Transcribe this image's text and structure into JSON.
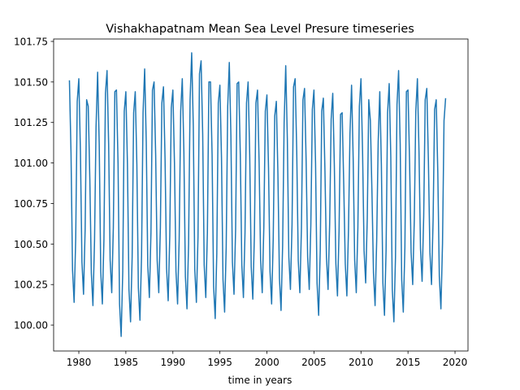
{
  "chart_data": {
    "type": "line",
    "title": "Vishakhapatnam Mean Sea Level Presure timeseries",
    "xlabel": "time in years",
    "xlim": [
      1977.32,
      2021.38
    ],
    "ylim": [
      99.84,
      101.765
    ],
    "xticks": [
      1980,
      1985,
      1990,
      1995,
      2000,
      2005,
      2010,
      2015,
      2020
    ],
    "yticks": [
      {
        "value": 100,
        "label": "100.00"
      },
      100.25,
      {
        "value": 100.5,
        "label": "100.50"
      },
      100.75,
      {
        "value": 101,
        "label": "101.00"
      },
      101.25,
      {
        "value": 101.5,
        "label": "101.50"
      },
      101.75
    ],
    "grid": false,
    "series": [
      {
        "color": "#1f77b4",
        "x": [
          1979,
          1979.17,
          1979.33,
          1979.5,
          1979.67,
          1979.83,
          1980,
          1980.17,
          1980.33,
          1980.5,
          1980.67,
          1980.83,
          1981,
          1981.17,
          1981.33,
          1981.5,
          1981.67,
          1981.83,
          1982,
          1982.17,
          1982.33,
          1982.5,
          1982.67,
          1982.83,
          1983,
          1983.17,
          1983.33,
          1983.5,
          1983.67,
          1983.83,
          1984,
          1984.17,
          1984.33,
          1984.5,
          1984.67,
          1984.83,
          1985,
          1985.17,
          1985.33,
          1985.5,
          1985.67,
          1985.83,
          1986,
          1986.17,
          1986.33,
          1986.5,
          1986.67,
          1986.83,
          1987,
          1987.17,
          1987.33,
          1987.5,
          1987.67,
          1987.83,
          1988,
          1988.17,
          1988.33,
          1988.5,
          1988.67,
          1988.83,
          1989,
          1989.17,
          1989.33,
          1989.5,
          1989.67,
          1989.83,
          1990,
          1990.17,
          1990.33,
          1990.5,
          1990.67,
          1990.83,
          1991,
          1991.17,
          1991.33,
          1991.5,
          1991.67,
          1991.83,
          1992,
          1992.17,
          1992.33,
          1992.5,
          1992.67,
          1992.83,
          1993,
          1993.17,
          1993.33,
          1993.5,
          1993.67,
          1993.83,
          1994,
          1994.17,
          1994.33,
          1994.5,
          1994.67,
          1994.83,
          1995,
          1995.17,
          1995.33,
          1995.5,
          1995.67,
          1995.83,
          1996,
          1996.17,
          1996.33,
          1996.5,
          1996.67,
          1996.83,
          1997,
          1997.17,
          1997.33,
          1997.5,
          1997.67,
          1997.83,
          1998,
          1998.17,
          1998.33,
          1998.5,
          1998.67,
          1998.83,
          1999,
          1999.17,
          1999.33,
          1999.5,
          1999.67,
          1999.83,
          2000,
          2000.17,
          2000.33,
          2000.5,
          2000.67,
          2000.83,
          2001,
          2001.17,
          2001.33,
          2001.5,
          2001.67,
          2001.83,
          2002,
          2002.17,
          2002.33,
          2002.5,
          2002.67,
          2002.83,
          2003,
          2003.17,
          2003.33,
          2003.5,
          2003.67,
          2003.83,
          2004,
          2004.17,
          2004.33,
          2004.5,
          2004.67,
          2004.83,
          2005,
          2005.17,
          2005.33,
          2005.5,
          2005.67,
          2005.83,
          2006,
          2006.17,
          2006.33,
          2006.5,
          2006.67,
          2006.83,
          2007,
          2007.17,
          2007.33,
          2007.5,
          2007.67,
          2007.83,
          2008,
          2008.17,
          2008.33,
          2008.5,
          2008.67,
          2008.83,
          2009,
          2009.17,
          2009.33,
          2009.5,
          2009.67,
          2009.83,
          2010,
          2010.17,
          2010.33,
          2010.5,
          2010.67,
          2010.83,
          2011,
          2011.17,
          2011.33,
          2011.5,
          2011.67,
          2011.83,
          2012,
          2012.17,
          2012.33,
          2012.5,
          2012.67,
          2012.83,
          2013,
          2013.17,
          2013.33,
          2013.5,
          2013.67,
          2013.83,
          2014,
          2014.17,
          2014.33,
          2014.5,
          2014.67,
          2014.83,
          2015,
          2015.17,
          2015.33,
          2015.5,
          2015.67,
          2015.83,
          2016,
          2016.17,
          2016.33,
          2016.5,
          2016.67,
          2016.83,
          2017,
          2017.17,
          2017.33,
          2017.5,
          2017.67,
          2017.83,
          2018,
          2018.17,
          2018.33,
          2018.5,
          2018.67,
          2018.83,
          2019
        ],
        "values": [
          101.51,
          101.06,
          100.34,
          100.14,
          100.54,
          101.38,
          101.52,
          101.07,
          100.39,
          100.19,
          100.59,
          101.39,
          101.35,
          100.9,
          100.32,
          100.12,
          100.52,
          101.22,
          101.56,
          101.11,
          100.33,
          100.13,
          100.53,
          101.43,
          101.57,
          101.12,
          100.4,
          100.2,
          100.6,
          101.44,
          101.45,
          101.0,
          100.13,
          99.93,
          100.33,
          101.32,
          101.44,
          100.99,
          100.22,
          100.02,
          100.42,
          101.31,
          101.44,
          100.99,
          100.23,
          100.03,
          100.43,
          101.31,
          101.58,
          101.13,
          100.37,
          100.17,
          100.57,
          101.45,
          101.5,
          101.05,
          100.4,
          100.2,
          100.6,
          101.37,
          101.47,
          101.02,
          100.35,
          100.15,
          100.55,
          101.34,
          101.45,
          101.0,
          100.33,
          100.13,
          100.53,
          101.32,
          101.52,
          101.07,
          100.3,
          100.1,
          100.5,
          101.39,
          101.68,
          101.23,
          100.34,
          100.14,
          100.54,
          101.55,
          101.63,
          101.18,
          100.37,
          100.17,
          100.57,
          101.5,
          101.5,
          101.05,
          100.24,
          100.04,
          100.44,
          101.37,
          101.48,
          101.03,
          100.28,
          100.08,
          100.48,
          101.35,
          101.62,
          101.17,
          100.39,
          100.19,
          100.59,
          101.49,
          101.5,
          101.05,
          100.37,
          100.17,
          100.57,
          101.37,
          101.5,
          101.05,
          100.36,
          100.16,
          100.56,
          101.37,
          101.45,
          101.0,
          100.4,
          100.2,
          100.6,
          101.32,
          101.42,
          100.97,
          100.33,
          100.13,
          100.53,
          101.29,
          101.38,
          100.93,
          100.29,
          100.09,
          100.49,
          101.25,
          101.6,
          101.15,
          100.42,
          100.22,
          100.62,
          101.47,
          101.52,
          101.07,
          100.4,
          100.2,
          100.6,
          101.39,
          101.46,
          101.01,
          100.42,
          100.22,
          100.62,
          101.33,
          101.45,
          101.0,
          100.26,
          100.06,
          100.46,
          101.32,
          101.4,
          100.95,
          100.42,
          100.22,
          100.62,
          101.27,
          101.43,
          100.98,
          100.38,
          100.18,
          100.58,
          101.3,
          101.31,
          100.86,
          100.38,
          100.18,
          100.58,
          101.18,
          101.48,
          101.03,
          100.4,
          100.2,
          100.6,
          101.35,
          101.52,
          101.07,
          100.46,
          100.26,
          100.66,
          101.39,
          101.26,
          100.81,
          100.32,
          100.12,
          100.52,
          101.13,
          101.44,
          100.99,
          100.26,
          100.06,
          100.46,
          101.31,
          101.49,
          101.04,
          100.22,
          100.02,
          100.42,
          101.36,
          101.57,
          101.12,
          100.28,
          100.08,
          100.48,
          101.44,
          101.45,
          101.0,
          100.45,
          100.25,
          100.65,
          101.32,
          101.52,
          101.07,
          100.47,
          100.27,
          100.67,
          101.39,
          101.46,
          101.01,
          100.45,
          100.25,
          100.65,
          101.33,
          101.39,
          100.94,
          100.3,
          100.1,
          100.5,
          101.26,
          101.4
        ]
      }
    ]
  }
}
